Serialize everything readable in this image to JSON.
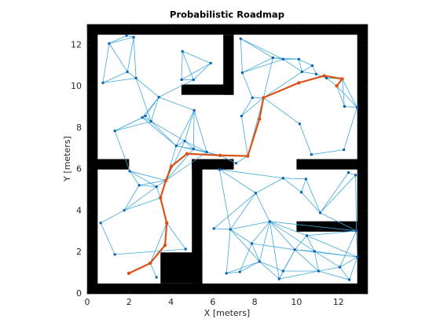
{
  "chart_data": {
    "type": "roadmap",
    "title": "Probabilistic Roadmap",
    "xlabel": "X [meters]",
    "ylabel": "Y [meters]",
    "xlim": [
      0,
      13.4
    ],
    "ylim": [
      0,
      13
    ],
    "xticks": [
      0,
      2,
      4,
      6,
      8,
      10,
      12
    ],
    "yticks": [
      0,
      2,
      4,
      6,
      8,
      10,
      12
    ],
    "obstacles": {
      "color": "#000000",
      "rects": [
        [
          0,
          0,
          0.5,
          13
        ],
        [
          0,
          12.5,
          13.4,
          13
        ],
        [
          12.9,
          0,
          13.4,
          13
        ],
        [
          0,
          0,
          13.4,
          0.5
        ],
        [
          6.5,
          9.6,
          7.0,
          12.5
        ],
        [
          4.5,
          9.6,
          7.0,
          10.1
        ],
        [
          0,
          6.0,
          2.0,
          6.5
        ],
        [
          5.0,
          0.5,
          5.5,
          6.5
        ],
        [
          5.0,
          6.0,
          7.0,
          6.5
        ],
        [
          3.5,
          0.5,
          5.5,
          2.0
        ],
        [
          10.0,
          6.0,
          13.4,
          6.5
        ],
        [
          10.0,
          3.0,
          13.4,
          3.5
        ]
      ]
    },
    "nodes": {
      "color": "#0a5fb4",
      "x": [
        1.05,
        1.88,
        2.22,
        0.75,
        1.92,
        2.33,
        3.42,
        4.55,
        4.51,
        5.08,
        5.9,
        1.32,
        2.63,
        2.78,
        3.05,
        5.11,
        4.66,
        4.25,
        5.08,
        5.71,
        6.35,
        7.11,
        7.67,
        7.37,
        7.89,
        7.33,
        7.41,
        8.42,
        8.87,
        9.36,
        10.11,
        10.26,
        10.75,
        10.94,
        11.43,
        12.18,
        11.92,
        12.29,
        12.89,
        10.15,
        10.71,
        12.26,
        2.03,
        2.48,
        3.31,
        3.76,
        1.77,
        0.64,
        1.32,
        3.5,
        3.8,
        4.7,
        3.31,
        3.01,
        1.99,
        6.32,
        8.05,
        9.36,
        10.23,
        10.45,
        11.13,
        12.48,
        12.82,
        6.05,
        6.84,
        8.72,
        12.86,
        6.65,
        7.86,
        8.23,
        9.17,
        9.92,
        10.86,
        11.05,
        12.07,
        12.9,
        12.52,
        9.36,
        7.29,
        10.49
      ],
      "y": [
        12.08,
        12.46,
        12.38,
        10.18,
        10.71,
        10.41,
        9.49,
        11.7,
        10.33,
        10.33,
        11.13,
        7.86,
        8.51,
        8.58,
        8.32,
        8.85,
        7.37,
        7.14,
        6.99,
        6.84,
        6.68,
        6.3,
        6.65,
        8.58,
        9.46,
        12.31,
        10.67,
        9.46,
        11.39,
        11.32,
        11.32,
        10.71,
        11.01,
        10.6,
        10.41,
        10.37,
        10.03,
        9.04,
        9.0,
        8.2,
        6.72,
        6.95,
        5.92,
        5.24,
        5.17,
        5.47,
        4.03,
        3.42,
        1.9,
        4.63,
        3.42,
        2.16,
        0.8,
        1.48,
        0.99,
        6.0,
        4.86,
        5.58,
        4.9,
        5.54,
        3.91,
        5.85,
        5.73,
        3.15,
        3.11,
        3.49,
        3.04,
        0.99,
        2.43,
        1.56,
        0.72,
        2.13,
        2.05,
        1.1,
        1.29,
        1.78,
        0.68,
        1.1,
        1.06,
        2.81
      ]
    },
    "edges": {
      "color": "#3fa9dc",
      "pairs": [
        [
          0,
          1
        ],
        [
          0,
          2
        ],
        [
          1,
          2
        ],
        [
          0,
          4
        ],
        [
          2,
          4
        ],
        [
          3,
          4
        ],
        [
          4,
          5
        ],
        [
          3,
          5
        ],
        [
          5,
          6
        ],
        [
          0,
          3
        ],
        [
          2,
          5
        ],
        [
          7,
          8
        ],
        [
          7,
          9
        ],
        [
          8,
          9
        ],
        [
          7,
          10
        ],
        [
          9,
          10
        ],
        [
          8,
          10
        ],
        [
          6,
          12
        ],
        [
          6,
          13
        ],
        [
          6,
          14
        ],
        [
          6,
          15
        ],
        [
          11,
          12
        ],
        [
          11,
          13
        ],
        [
          12,
          13
        ],
        [
          13,
          14
        ],
        [
          12,
          14
        ],
        [
          14,
          16
        ],
        [
          14,
          17
        ],
        [
          15,
          16
        ],
        [
          15,
          17
        ],
        [
          15,
          18
        ],
        [
          16,
          17
        ],
        [
          16,
          18
        ],
        [
          17,
          18
        ],
        [
          18,
          19
        ],
        [
          16,
          19
        ],
        [
          19,
          20
        ],
        [
          17,
          20
        ],
        [
          15,
          19
        ],
        [
          6,
          9
        ],
        [
          5,
          14
        ],
        [
          12,
          17
        ],
        [
          11,
          42
        ],
        [
          11,
          14
        ],
        [
          20,
          21
        ],
        [
          20,
          22
        ],
        [
          21,
          22
        ],
        [
          22,
          23
        ],
        [
          23,
          24
        ],
        [
          24,
          27
        ],
        [
          23,
          27
        ],
        [
          22,
          27
        ],
        [
          24,
          26
        ],
        [
          25,
          26
        ],
        [
          25,
          28
        ],
        [
          26,
          28
        ],
        [
          27,
          28
        ],
        [
          26,
          29
        ],
        [
          28,
          29
        ],
        [
          29,
          30
        ],
        [
          28,
          30
        ],
        [
          30,
          31
        ],
        [
          30,
          32
        ],
        [
          31,
          32
        ],
        [
          32,
          33
        ],
        [
          31,
          33
        ],
        [
          33,
          34
        ],
        [
          34,
          35
        ],
        [
          35,
          36
        ],
        [
          34,
          36
        ],
        [
          35,
          37
        ],
        [
          36,
          37
        ],
        [
          37,
          38
        ],
        [
          35,
          38
        ],
        [
          27,
          31
        ],
        [
          27,
          39
        ],
        [
          39,
          40
        ],
        [
          40,
          41
        ],
        [
          38,
          41
        ],
        [
          36,
          38
        ],
        [
          29,
          31
        ],
        [
          25,
          29
        ],
        [
          42,
          43
        ],
        [
          42,
          44
        ],
        [
          43,
          44
        ],
        [
          44,
          45
        ],
        [
          43,
          45
        ],
        [
          42,
          45
        ],
        [
          43,
          46
        ],
        [
          44,
          46
        ],
        [
          46,
          47
        ],
        [
          46,
          49
        ],
        [
          44,
          49
        ],
        [
          45,
          49
        ],
        [
          49,
          50
        ],
        [
          47,
          48
        ],
        [
          48,
          51
        ],
        [
          50,
          51
        ],
        [
          50,
          53
        ],
        [
          53,
          54
        ],
        [
          53,
          52
        ],
        [
          17,
          45
        ],
        [
          45,
          18
        ],
        [
          16,
          45
        ],
        [
          19,
          45
        ],
        [
          55,
          56
        ],
        [
          55,
          57
        ],
        [
          56,
          57
        ],
        [
          57,
          58
        ],
        [
          57,
          59
        ],
        [
          58,
          59
        ],
        [
          58,
          60
        ],
        [
          59,
          60
        ],
        [
          60,
          61
        ],
        [
          61,
          62
        ],
        [
          60,
          62
        ],
        [
          56,
          65
        ],
        [
          56,
          63
        ],
        [
          56,
          64
        ],
        [
          63,
          64
        ],
        [
          64,
          65
        ],
        [
          65,
          66
        ],
        [
          60,
          66
        ],
        [
          62,
          66
        ],
        [
          55,
          64
        ],
        [
          64,
          67
        ],
        [
          64,
          68
        ],
        [
          64,
          69
        ],
        [
          65,
          68
        ],
        [
          65,
          69
        ],
        [
          65,
          70
        ],
        [
          65,
          71
        ],
        [
          65,
          72
        ],
        [
          68,
          69
        ],
        [
          69,
          70
        ],
        [
          69,
          77
        ],
        [
          70,
          77
        ],
        [
          68,
          78
        ],
        [
          67,
          78
        ],
        [
          78,
          69
        ],
        [
          71,
          72
        ],
        [
          71,
          73
        ],
        [
          72,
          73
        ],
        [
          72,
          74
        ],
        [
          73,
          74
        ],
        [
          74,
          75
        ],
        [
          74,
          76
        ],
        [
          75,
          76
        ],
        [
          73,
          76
        ],
        [
          72,
          75
        ],
        [
          70,
          73
        ],
        [
          77,
          71
        ],
        [
          79,
          71
        ],
        [
          79,
          72
        ],
        [
          79,
          75
        ],
        [
          79,
          66
        ],
        [
          79,
          65
        ],
        [
          66,
          75
        ],
        [
          67,
          69
        ],
        [
          68,
          71
        ],
        [
          71,
          75
        ],
        [
          70,
          71
        ],
        [
          66,
          74
        ],
        [
          73,
          77
        ]
      ]
    },
    "path": {
      "color": "#d95319",
      "x": [
        1.99,
        3.01,
        3.72,
        3.8,
        3.5,
        3.76,
        4.02,
        4.77,
        6.35,
        7.67,
        8.23,
        8.42,
        10.11,
        11.32,
        12.18,
        11.92
      ],
      "y": [
        0.99,
        1.48,
        2.35,
        3.42,
        4.63,
        5.47,
        6.15,
        6.76,
        6.68,
        6.65,
        8.43,
        9.46,
        10.18,
        10.52,
        10.37,
        10.03
      ]
    }
  }
}
